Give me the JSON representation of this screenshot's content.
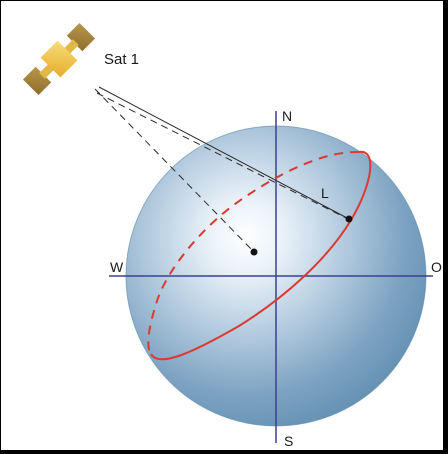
{
  "diagram": {
    "satellite_label": "Sat 1",
    "compass": {
      "north": "N",
      "south": "S",
      "west": "W",
      "east": "O"
    },
    "line_label": "L"
  },
  "colors": {
    "background": "#ffffff",
    "frame": "#000000",
    "globe_edge": "#6d95b6",
    "globe_highlight": "#f4f8fc",
    "axis": "#39408f",
    "orbit": "#d93a33",
    "satellite_panel": "#a7873c",
    "satellite_body": "#f0c24b",
    "dark_lines": "#2a2a2a"
  },
  "icons": {
    "satellite": "satellite-icon",
    "globe": "globe-icon"
  }
}
